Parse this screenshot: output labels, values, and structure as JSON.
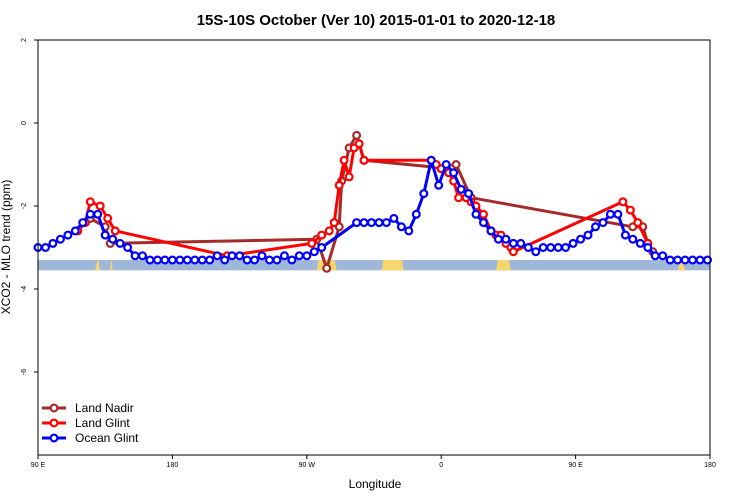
{
  "chart_data": {
    "type": "line",
    "title": "15S-10S October (Ver 10)   2015-01-01 to 2020-12-18",
    "xlabel": "Longitude",
    "ylabel": "XCO2 - MLO trend (ppm)",
    "xlim": [
      -90,
      180
    ],
    "ylim": [
      -8,
      2
    ],
    "x_ticks": [
      {
        "value": -90,
        "label": "90 E"
      },
      {
        "value": -36,
        "label": "180"
      },
      {
        "value": 18,
        "label": "90 W"
      },
      {
        "value": 72,
        "label": "0"
      },
      {
        "value": 126,
        "label": "90 E"
      },
      {
        "value": 180,
        "label": "180"
      }
    ],
    "y_ticks": [
      {
        "value": 2,
        "label": "2"
      },
      {
        "value": 0,
        "label": "0"
      },
      {
        "value": -2,
        "label": "-2"
      },
      {
        "value": -4,
        "label": "-4"
      },
      {
        "value": -6,
        "label": "-6"
      }
    ],
    "grid": false,
    "legend_position": "bottom-left",
    "land_bar": {
      "y_top": -3.3,
      "y_bottom": -3.55,
      "ocean_color": "#9fb7d9",
      "land_color": "#f8d66e",
      "land_segments": [
        [
          22,
          30
        ],
        [
          48,
          57
        ],
        [
          94,
          100
        ]
      ],
      "land_bumps": [
        [
          -67,
          -65
        ],
        [
          -61,
          -60
        ],
        [
          167,
          170
        ]
      ]
    },
    "series": [
      {
        "name": "Land Nadir",
        "color": "#a52a2a",
        "x": [
          -69,
          -63,
          -61,
          22,
          26,
          31,
          32,
          35,
          38,
          41,
          76,
          78,
          84,
          149,
          153,
          155,
          157
        ],
        "y": [
          -2.3,
          -2.5,
          -2.9,
          -2.8,
          -3.5,
          -2.5,
          -1.4,
          -0.6,
          -0.3,
          -0.9,
          -1.1,
          -1.0,
          -1.8,
          -2.5,
          -2.5,
          -2.9,
          -3.1
        ]
      },
      {
        "name": "Land Glint",
        "color": "#ff0000",
        "x": [
          -74,
          -71,
          -69,
          -65,
          -62,
          -59,
          -14,
          20,
          24,
          27,
          29,
          31,
          33,
          35,
          37,
          39,
          41,
          68,
          70,
          72,
          75,
          77,
          79,
          82,
          84,
          86,
          89,
          92,
          94,
          96,
          98,
          100,
          101,
          145,
          148,
          151,
          155
        ],
        "y": [
          -2.6,
          -2.4,
          -1.9,
          -2.0,
          -2.3,
          -2.6,
          -3.2,
          -2.9,
          -2.7,
          -2.6,
          -2.4,
          -1.5,
          -0.9,
          -1.3,
          -0.6,
          -0.5,
          -0.9,
          -0.9,
          -1.0,
          -1.1,
          -1.2,
          -1.4,
          -1.8,
          -1.8,
          -1.9,
          -2.0,
          -2.2,
          -2.6,
          -2.7,
          -2.7,
          -2.9,
          -3.0,
          -3.1,
          -1.9,
          -2.1,
          -2.4,
          -2.9
        ]
      },
      {
        "name": "Ocean Glint",
        "color": "#0000ff",
        "x": [
          -90,
          -87,
          -84,
          -81,
          -78,
          -75,
          -72,
          -69,
          -66,
          -63,
          -60,
          -57,
          -54,
          -51,
          -48,
          -45,
          -42,
          -39,
          -36,
          -33,
          -30,
          -27,
          -24,
          -21,
          -18,
          -15,
          -12,
          -9,
          -6,
          -3,
          0,
          3,
          6,
          9,
          12,
          15,
          18,
          21,
          24,
          38,
          41,
          44,
          47,
          50,
          53,
          56,
          59,
          62,
          65,
          68,
          71,
          74,
          77,
          80,
          83,
          86,
          89,
          92,
          95,
          98,
          101,
          104,
          107,
          110,
          113,
          116,
          119,
          122,
          125,
          128,
          131,
          134,
          137,
          140,
          143,
          146,
          149,
          152,
          155,
          158,
          161,
          164,
          167,
          170,
          173,
          176,
          179
        ],
        "y": [
          -3.0,
          -3.0,
          -2.9,
          -2.8,
          -2.7,
          -2.6,
          -2.4,
          -2.2,
          -2.2,
          -2.7,
          -2.8,
          -2.9,
          -3.0,
          -3.2,
          -3.2,
          -3.3,
          -3.3,
          -3.3,
          -3.3,
          -3.3,
          -3.3,
          -3.3,
          -3.3,
          -3.3,
          -3.2,
          -3.3,
          -3.2,
          -3.2,
          -3.3,
          -3.3,
          -3.2,
          -3.3,
          -3.3,
          -3.2,
          -3.3,
          -3.2,
          -3.2,
          -3.1,
          -3.0,
          -2.4,
          -2.4,
          -2.4,
          -2.4,
          -2.4,
          -2.3,
          -2.5,
          -2.6,
          -2.2,
          -1.7,
          -0.9,
          -1.5,
          -1.0,
          -1.2,
          -1.6,
          -1.7,
          -2.2,
          -2.4,
          -2.6,
          -2.8,
          -2.8,
          -2.9,
          -2.9,
          -3.0,
          -3.1,
          -3.0,
          -3.0,
          -3.0,
          -3.0,
          -2.9,
          -2.8,
          -2.7,
          -2.5,
          -2.4,
          -2.2,
          -2.2,
          -2.7,
          -2.8,
          -2.9,
          -3.0,
          -3.2,
          -3.2,
          -3.3,
          -3.3,
          -3.3,
          -3.3,
          -3.3,
          -3.3
        ]
      }
    ]
  }
}
